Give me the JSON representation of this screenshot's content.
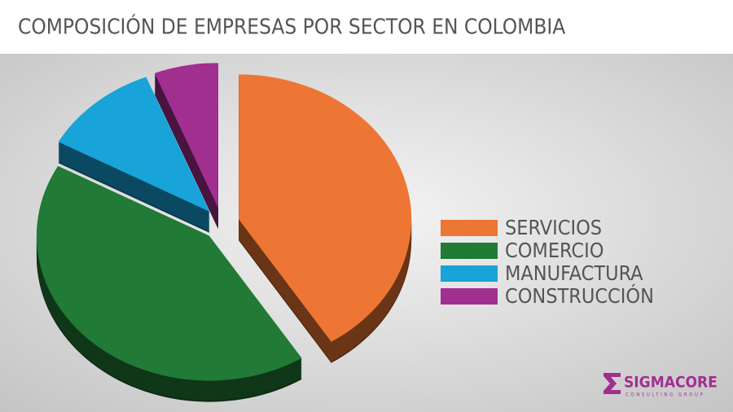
{
  "chart_data": {
    "type": "pie",
    "title": "COMPOSICIÓN DE EMPRESAS POR SECTOR EN COLOMBIA",
    "categories": [
      "SERVICIOS",
      "COMERCIO",
      "MANUFACTURA",
      "CONSTRUCCIÓN"
    ],
    "values": [
      41,
      42,
      11,
      6
    ],
    "colors": [
      "#ed7634",
      "#217a35",
      "#18a3d9",
      "#a12f90"
    ],
    "legend": "right"
  },
  "logo": {
    "name": "SIGMACORE",
    "tagline": "CONSULTING GROUP"
  }
}
